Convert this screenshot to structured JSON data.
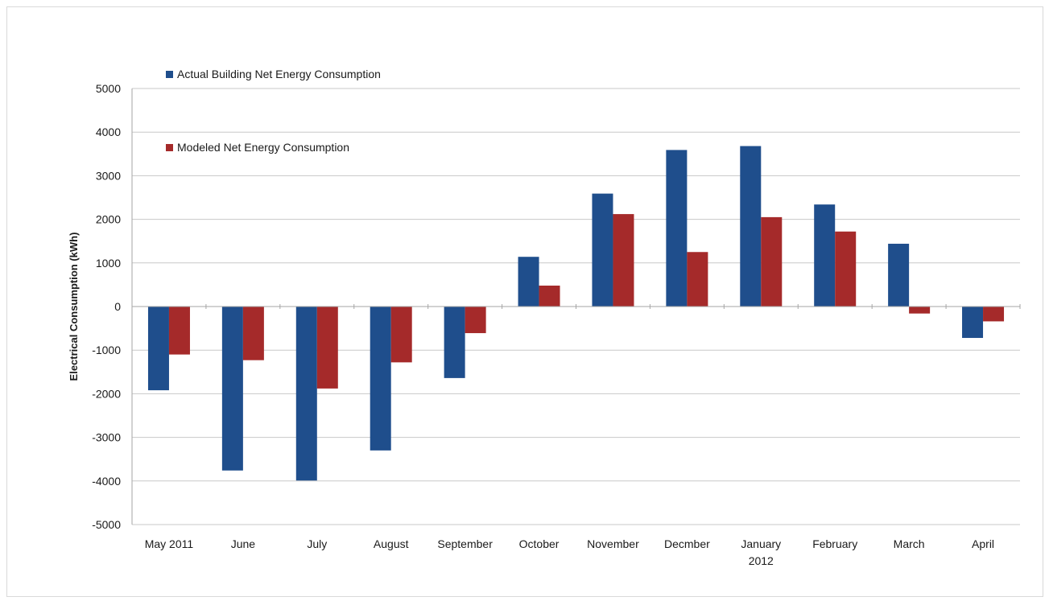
{
  "chart_data": {
    "type": "bar",
    "categories": [
      "May 2011",
      "June",
      "July",
      "August",
      "September",
      "October",
      "November",
      "Decmber",
      "January 2012",
      "February",
      "March",
      "April"
    ],
    "category_lines": [
      [
        "May 2011"
      ],
      [
        "June"
      ],
      [
        "July"
      ],
      [
        "August"
      ],
      [
        "September"
      ],
      [
        "October"
      ],
      [
        "November"
      ],
      [
        "Decmber"
      ],
      [
        "January",
        "2012"
      ],
      [
        "February"
      ],
      [
        "March"
      ],
      [
        "April"
      ]
    ],
    "series": [
      {
        "name": "Actual Building Net Energy Consumption",
        "color": "#1f4e8c",
        "values": [
          -1920,
          -3760,
          -3990,
          -3300,
          -1640,
          1140,
          2590,
          3590,
          3680,
          2340,
          1440,
          -720
        ]
      },
      {
        "name": "Modeled Net Energy Consumption",
        "color": "#a52a2a",
        "values": [
          -1100,
          -1230,
          -1880,
          -1280,
          -610,
          480,
          2120,
          1250,
          2050,
          1720,
          -160,
          -340
        ]
      }
    ],
    "ylabel": "Electrical Consumption (kWh)",
    "xlabel": "",
    "title": "",
    "ylim": [
      -5000,
      5000
    ],
    "yticks": [
      5000,
      4000,
      3000,
      2000,
      1000,
      0,
      -1000,
      -2000,
      -3000,
      -4000,
      -5000
    ],
    "grid": true,
    "legend_position": "top-left"
  }
}
